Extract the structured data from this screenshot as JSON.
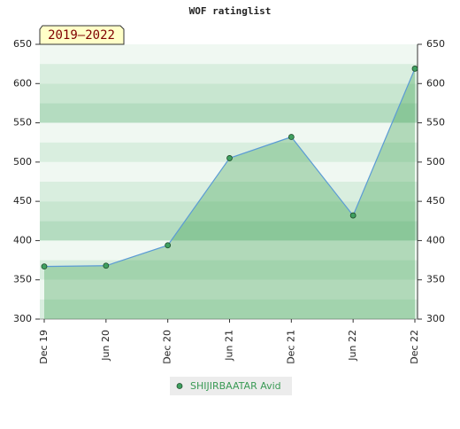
{
  "chart_data": {
    "type": "line",
    "title": "WOF ratinglist",
    "annotation": "2019–2022",
    "categories": [
      "Dec 19",
      "Jun 20",
      "Dec 20",
      "Jun 21",
      "Dec 21",
      "Jun 22",
      "Dec 22"
    ],
    "series": [
      {
        "name": "SHIJIRBAATAR Avid",
        "color": "#5b9bd5",
        "values": [
          367,
          368,
          394,
          505,
          532,
          432,
          619
        ]
      }
    ],
    "area": true,
    "ylim": [
      300,
      650
    ],
    "yticks": [
      300,
      350,
      400,
      450,
      500,
      550,
      600,
      650
    ],
    "y2lim": [
      300,
      650
    ],
    "y2ticks": [
      300,
      350,
      400,
      450,
      500,
      550,
      600,
      650
    ]
  }
}
